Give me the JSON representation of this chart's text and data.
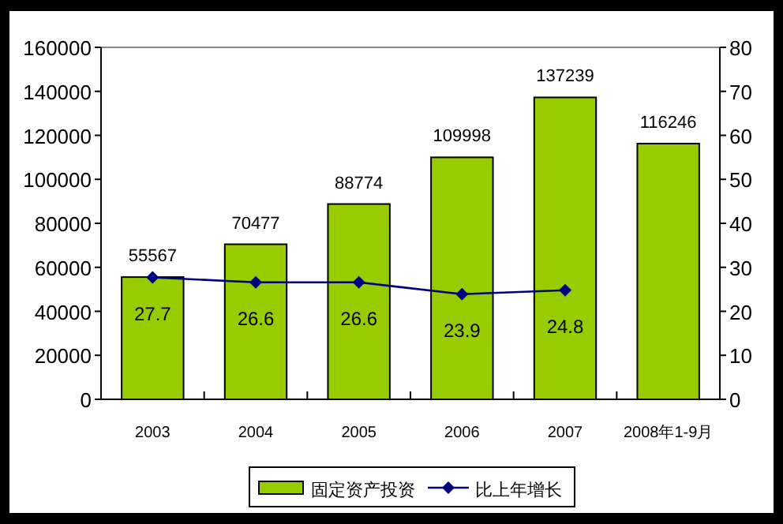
{
  "chart_data": {
    "type": "bar",
    "categories": [
      "2003",
      "2004",
      "2005",
      "2006",
      "2007",
      "2008年1-9月"
    ],
    "series": [
      {
        "name": "固定资产投资",
        "color": "#99cc00",
        "values": [
          55567,
          70477,
          88774,
          109998,
          137239,
          116246
        ]
      },
      {
        "name": "比上年增长",
        "type": "line",
        "axis": "y2",
        "color": "#000080",
        "marker": "diamond",
        "values": [
          27.7,
          26.6,
          26.6,
          23.9,
          24.8,
          null
        ]
      }
    ],
    "ylim": [
      0,
      160000
    ],
    "yticks": [
      0,
      20000,
      40000,
      60000,
      80000,
      100000,
      120000,
      140000,
      160000
    ],
    "y2lim": [
      0,
      80
    ],
    "y2ticks": [
      0,
      10,
      20,
      30,
      40,
      50,
      60,
      70,
      80
    ],
    "data_labels": true,
    "grid": false,
    "legend": "bottom"
  }
}
